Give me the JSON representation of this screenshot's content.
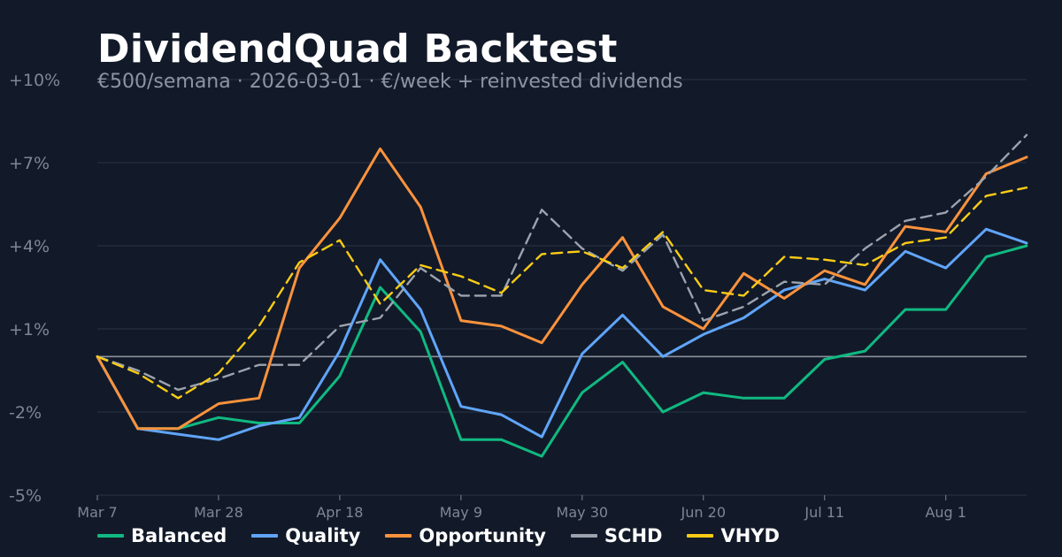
{
  "chart_data": {
    "type": "line",
    "title": "DividendQuad Backtest",
    "subtitle": "€500/semana · 2026-03-01 · €/week + reinvested dividends",
    "x": [
      "Mar 7",
      "Mar 14",
      "Mar 21",
      "Mar 28",
      "Apr 4",
      "Apr 11",
      "Apr 18",
      "Apr 25",
      "May 2",
      "May 9",
      "May 16",
      "May 23",
      "May 30",
      "Jun 6",
      "Jun 13",
      "Jun 20",
      "Jun 27",
      "Jul 4",
      "Jul 11",
      "Jul 18",
      "Jul 25",
      "Aug 1",
      "Aug 8",
      "Aug 15"
    ],
    "x_tick_labels": [
      "Mar 7",
      "Mar 28",
      "Apr 18",
      "May 9",
      "May 30",
      "Jun 20",
      "Jul 11",
      "Aug 1"
    ],
    "y_tick_labels": [
      "+10%",
      "+7%",
      "+4%",
      "+1%",
      "-2%",
      "-5%"
    ],
    "y_ticks": [
      10,
      7,
      4,
      1,
      -2,
      -5
    ],
    "ylim": [
      -5,
      10
    ],
    "baseline": 0,
    "grid": true,
    "legend_position": "bottom",
    "series": [
      {
        "name": "Balanced",
        "color": "#10b981",
        "dashed": false,
        "values": [
          0,
          -2.6,
          -2.6,
          -2.2,
          -2.4,
          -2.4,
          -0.7,
          2.5,
          0.9,
          -3.0,
          -3.0,
          -3.6,
          -1.3,
          -0.2,
          -2.0,
          -1.3,
          -1.5,
          -1.5,
          -0.1,
          0.2,
          1.7,
          1.7,
          3.6,
          4.0
        ]
      },
      {
        "name": "Quality",
        "color": "#60a5fa",
        "dashed": false,
        "values": [
          0,
          -2.6,
          -2.8,
          -3.0,
          -2.5,
          -2.2,
          0.2,
          3.5,
          1.7,
          -1.8,
          -2.1,
          -2.9,
          0.1,
          1.5,
          0,
          0.8,
          1.4,
          2.4,
          2.8,
          2.4,
          3.8,
          3.2,
          4.6,
          4.1
        ]
      },
      {
        "name": "Opportunity",
        "color": "#fb923c",
        "dashed": false,
        "values": [
          0,
          -2.6,
          -2.6,
          -1.7,
          -1.5,
          3.2,
          5.0,
          7.5,
          5.4,
          1.3,
          1.1,
          0.5,
          2.6,
          4.3,
          1.8,
          1.0,
          3.0,
          2.1,
          3.1,
          2.6,
          4.7,
          4.5,
          6.6,
          7.2
        ]
      },
      {
        "name": "SCHD",
        "color": "#9ca3af",
        "dashed": true,
        "values": [
          0,
          -0.5,
          -1.2,
          -0.8,
          -0.3,
          -0.3,
          1.1,
          1.4,
          3.2,
          2.2,
          2.2,
          5.3,
          3.9,
          3.1,
          4.4,
          1.3,
          1.8,
          2.7,
          2.6,
          3.9,
          4.9,
          5.2,
          6.5,
          8.0
        ]
      },
      {
        "name": "VHYD",
        "color": "#facc15",
        "dashed": true,
        "values": [
          0,
          -0.6,
          -1.5,
          -0.6,
          1.1,
          3.4,
          4.2,
          1.9,
          3.3,
          2.9,
          2.3,
          3.7,
          3.8,
          3.2,
          4.5,
          2.4,
          2.2,
          3.6,
          3.5,
          3.3,
          4.1,
          4.3,
          5.8,
          6.1
        ]
      }
    ]
  }
}
